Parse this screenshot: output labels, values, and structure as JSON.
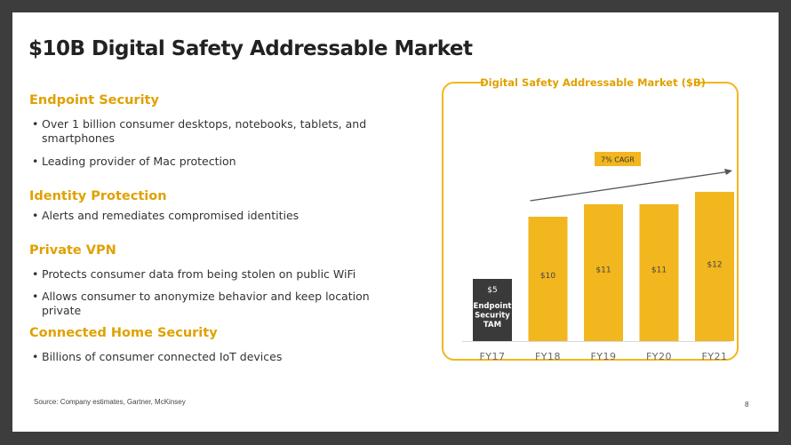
{
  "title": "$10B Digital Safety Addressable Market",
  "sections": [
    {
      "heading": "Endpoint Security",
      "bullets": [
        "Over 1 billion consumer desktops, notebooks, tablets, and smartphones",
        "Leading provider of Mac protection"
      ]
    },
    {
      "heading": "Identity Protection",
      "bullets": [
        "Alerts and remediates compromised identities"
      ]
    },
    {
      "heading": "Private VPN",
      "bullets": [
        "Protects consumer data from being stolen on public WiFi",
        "Allows consumer to anonymize behavior and keep location private"
      ]
    },
    {
      "heading": "Connected Home Security",
      "bullets": [
        "Billions of consumer connected IoT devices"
      ]
    }
  ],
  "bullet_char": "•",
  "source": "Source: Company estimates, Gartner, McKinsey",
  "page_number": "8",
  "colors": {
    "accent": "#F2B61E",
    "heading": "#E0A100",
    "dark_bar": "#3A3A3A"
  },
  "chart_data": {
    "type": "bar",
    "title": "Digital Safety Addressable Market ($B)",
    "categories": [
      "FY17",
      "FY18",
      "FY19",
      "FY20",
      "FY21"
    ],
    "values": [
      5,
      10,
      11,
      11,
      12
    ],
    "value_labels": [
      "$5",
      "$10",
      "$11",
      "$11",
      "$12"
    ],
    "highlight_label": [
      "Endpoint",
      "Security",
      "TAM"
    ],
    "annotation": "7% CAGR",
    "ylim": [
      0,
      14
    ]
  }
}
